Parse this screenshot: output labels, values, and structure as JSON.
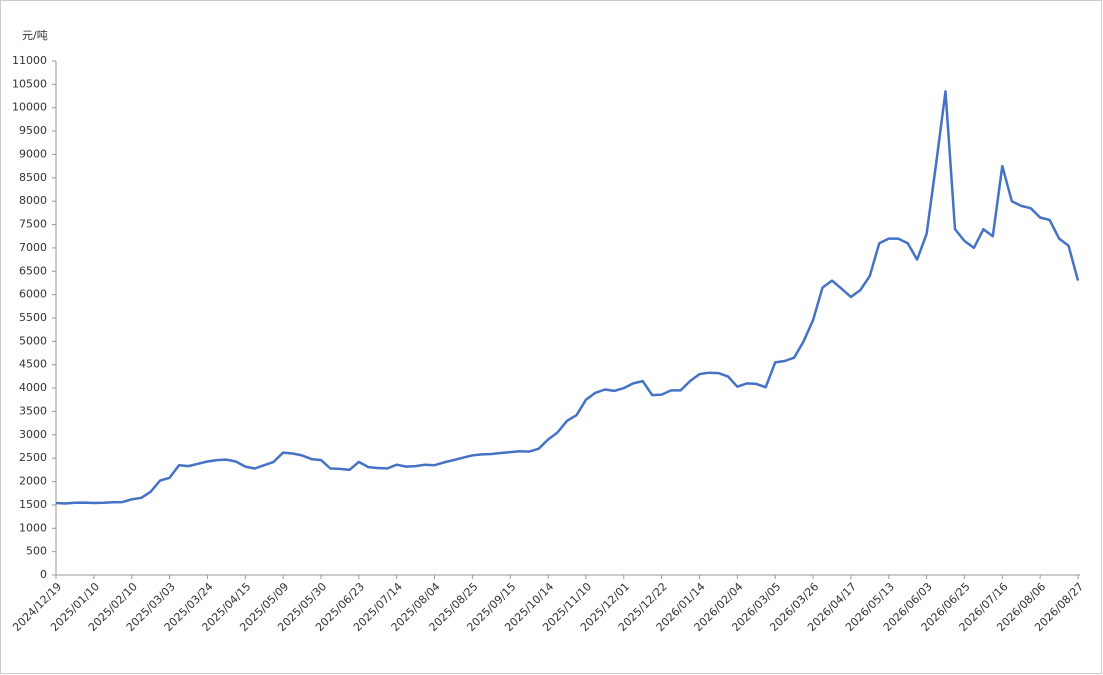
{
  "chart_data": {
    "type": "line",
    "y_label": "元/吨",
    "categories": [
      "2024/12/19",
      null,
      null,
      null,
      "2025/01/10",
      null,
      null,
      null,
      "2025/02/10",
      null,
      null,
      null,
      "2025/03/03",
      null,
      null,
      null,
      "2025/03/24",
      null,
      null,
      null,
      "2025/04/15",
      null,
      null,
      null,
      "2025/05/09",
      null,
      null,
      null,
      "2025/05/30",
      null,
      null,
      null,
      "2025/06/23",
      null,
      null,
      null,
      "2025/07/14",
      null,
      null,
      null,
      "2025/08/04",
      null,
      null,
      null,
      "2025/08/25",
      null,
      null,
      null,
      "2025/09/15",
      null,
      null,
      null,
      "2025/10/14",
      null,
      null,
      null,
      "2025/11/10",
      null,
      null,
      null,
      "2025/12/01",
      null,
      null,
      null,
      "2025/12/22",
      null,
      null,
      null,
      "2026/01/14",
      null,
      null,
      null,
      "2026/02/04",
      null,
      null,
      null,
      "2026/03/05",
      null,
      null,
      null,
      "2026/03/26",
      null,
      null,
      null,
      "2026/04/17",
      null,
      null,
      null,
      "2026/05/13",
      null,
      null,
      null,
      "2026/06/03",
      null,
      null,
      null,
      "2026/06/25",
      null,
      null,
      null,
      "2026/07/16",
      null,
      null,
      null,
      "2026/08/06",
      null,
      null,
      null,
      "2026/08/27"
    ],
    "series": [
      {
        "color": "#4472c4",
        "values": [
          1540,
          1530,
          1545,
          1550,
          1540,
          1545,
          1555,
          1560,
          1620,
          1650,
          1780,
          2020,
          2080,
          2350,
          2330,
          2380,
          2430,
          2460,
          2470,
          2430,
          2320,
          2280,
          2350,
          2420,
          2620,
          2600,
          2560,
          2480,
          2460,
          2280,
          2270,
          2250,
          2420,
          2310,
          2290,
          2280,
          2360,
          2320,
          2330,
          2360,
          2350,
          2410,
          2460,
          2510,
          2560,
          2580,
          2590,
          2610,
          2630,
          2650,
          2640,
          2700,
          2900,
          3050,
          3300,
          3420,
          3750,
          3900,
          3970,
          3940,
          4000,
          4100,
          4150,
          3850,
          3860,
          3950,
          3950,
          4150,
          4300,
          4330,
          4320,
          4250,
          4030,
          4100,
          4090,
          4020,
          4550,
          4580,
          4650,
          5000,
          5450,
          6150,
          6300,
          6130,
          5950,
          6100,
          6400,
          7100,
          7200,
          7200,
          7100,
          6750,
          7300,
          8800,
          10350,
          7400,
          7150,
          7000,
          7400,
          7250,
          8750,
          8000,
          7900,
          7850,
          7650,
          7600,
          7200,
          7050,
          6300
        ]
      }
    ],
    "ylim": [
      0,
      11000
    ],
    "yticks": [
      0,
      500,
      1000,
      1500,
      2000,
      2500,
      3000,
      3500,
      4000,
      4500,
      5000,
      5500,
      6000,
      6500,
      7000,
      7500,
      8000,
      8500,
      9000,
      9500,
      10000,
      10500,
      11000
    ],
    "grid": false
  }
}
